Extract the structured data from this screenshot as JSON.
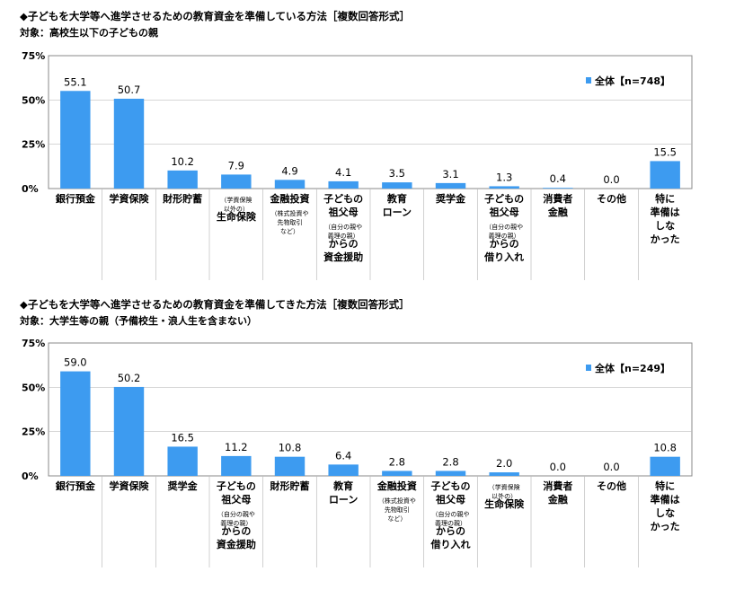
{
  "colors": {
    "bar": "#3d9bf0",
    "axis": "#888888",
    "grid": "#bdbdbd"
  },
  "chart_data": [
    {
      "type": "bar",
      "title": "◆子どもを大学等へ進学させるための教育資金を準備している方法［複数回答形式］",
      "subtitle": "対象：高校生以下の子どもの親",
      "legend": "全体【n=748】",
      "legend_position": "top-right",
      "ylim": [
        0,
        75
      ],
      "yticks": [
        "75%",
        "50%",
        "25%",
        "0%"
      ],
      "grid": true,
      "categories": [
        [
          "銀行預金"
        ],
        [
          "学資保険"
        ],
        [
          "財形貯蓄"
        ],
        [
          "（学資保険",
          "以外の）",
          "生命保険"
        ],
        [
          "金融投資",
          "（株式投資や",
          "先物取引",
          "など）"
        ],
        [
          "子どもの",
          "祖父母",
          "（自分の親や",
          "義理の親）",
          "からの",
          "資金援助"
        ],
        [
          "教育",
          "ローン"
        ],
        [
          "奨学金"
        ],
        [
          "子どもの",
          "祖父母",
          "（自分の親や",
          "義理の親）",
          "からの",
          "借り入れ"
        ],
        [
          "消費者",
          "金融"
        ],
        [
          "その他"
        ],
        [
          "特に",
          "準備は",
          "しな",
          "かった"
        ]
      ],
      "values": [
        55.1,
        50.7,
        10.2,
        7.9,
        4.9,
        4.1,
        3.5,
        3.1,
        1.3,
        0.4,
        0.0,
        15.5
      ],
      "value_labels": [
        "55.1",
        "50.7",
        "10.2",
        "7.9",
        "4.9",
        "4.1",
        "3.5",
        "3.1",
        "1.3",
        "0.4",
        "0.0",
        "15.5"
      ]
    },
    {
      "type": "bar",
      "title": "◆子どもを大学等へ進学させるための教育資金を準備してきた方法［複数回答形式］",
      "subtitle": "対象：大学生等の親（予備校生・浪人生を含まない）",
      "legend": "全体【n=249】",
      "legend_position": "top-right",
      "ylim": [
        0,
        75
      ],
      "yticks": [
        "75%",
        "50%",
        "25%",
        "0%"
      ],
      "grid": true,
      "categories": [
        [
          "銀行預金"
        ],
        [
          "学資保険"
        ],
        [
          "奨学金"
        ],
        [
          "子どもの",
          "祖父母",
          "（自分の親や",
          "義理の親）",
          "からの",
          "資金援助"
        ],
        [
          "財形貯蓄"
        ],
        [
          "教育",
          "ローン"
        ],
        [
          "金融投資",
          "（株式投資や",
          "先物取引",
          "など）"
        ],
        [
          "子どもの",
          "祖父母",
          "（自分の親や",
          "義理の親）",
          "からの",
          "借り入れ"
        ],
        [
          "（学資保険",
          "以外の）",
          "生命保険"
        ],
        [
          "消費者",
          "金融"
        ],
        [
          "その他"
        ],
        [
          "特に",
          "準備は",
          "しな",
          "かった"
        ]
      ],
      "values": [
        59.0,
        50.2,
        16.5,
        11.2,
        10.8,
        6.4,
        2.8,
        2.8,
        2.0,
        0.0,
        0.0,
        10.8
      ],
      "value_labels": [
        "59.0",
        "50.2",
        "16.5",
        "11.2",
        "10.8",
        "6.4",
        "2.8",
        "2.8",
        "2.0",
        "0.0",
        "0.0",
        "10.8"
      ]
    }
  ]
}
